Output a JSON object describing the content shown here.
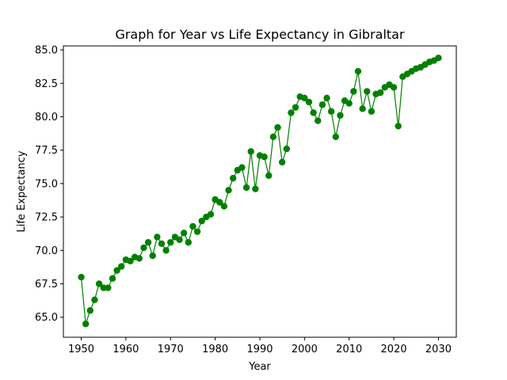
{
  "chart_data": {
    "type": "line",
    "title": "Graph for Year vs Life Expectancy in Gibraltar",
    "xlabel": "Year",
    "ylabel": "Life Expectancy",
    "xlim": [
      1946,
      2034
    ],
    "ylim": [
      63.5,
      85.3
    ],
    "x_ticks": [
      1950,
      1960,
      1970,
      1980,
      1990,
      2000,
      2010,
      2020,
      2030
    ],
    "y_ticks": [
      65.0,
      67.5,
      70.0,
      72.5,
      75.0,
      77.5,
      80.0,
      82.5,
      85.0
    ],
    "x_tick_labels": [
      "1950",
      "1960",
      "1970",
      "1980",
      "1990",
      "2000",
      "2010",
      "2020",
      "2030"
    ],
    "y_tick_labels": [
      "65.0",
      "67.5",
      "70.0",
      "72.5",
      "75.0",
      "77.5",
      "80.0",
      "82.5",
      "85.0"
    ],
    "grid": false,
    "line_color": "#008000",
    "marker": "circle",
    "series": [
      {
        "x": [
          1950,
          1951,
          1952,
          1953,
          1954,
          1955,
          1956,
          1957,
          1958,
          1959,
          1960,
          1961,
          1962,
          1963,
          1964,
          1965,
          1966,
          1967,
          1968,
          1969,
          1970,
          1971,
          1972,
          1973,
          1974,
          1975,
          1976,
          1977,
          1978,
          1979,
          1980,
          1981,
          1982,
          1983,
          1984,
          1985,
          1986,
          1987,
          1988,
          1989,
          1990,
          1991,
          1992,
          1993,
          1994,
          1995,
          1996,
          1997,
          1998,
          1999,
          2000,
          2001,
          2002,
          2003,
          2004,
          2005,
          2006,
          2007,
          2008,
          2009,
          2010,
          2011,
          2012,
          2013,
          2014,
          2015,
          2016,
          2017,
          2018,
          2019,
          2020,
          2021,
          2022,
          2023,
          2024,
          2025,
          2026,
          2027,
          2028,
          2029,
          2030
        ],
        "y": [
          68.0,
          64.5,
          65.5,
          66.3,
          67.5,
          67.2,
          67.2,
          67.9,
          68.5,
          68.8,
          69.3,
          69.2,
          69.5,
          69.4,
          70.2,
          70.6,
          69.6,
          71.0,
          70.5,
          70.0,
          70.6,
          71.0,
          70.8,
          71.3,
          70.6,
          71.8,
          71.4,
          72.2,
          72.5,
          72.7,
          73.8,
          73.6,
          73.3,
          74.5,
          75.4,
          76.0,
          76.2,
          74.7,
          77.4,
          74.6,
          77.1,
          77.0,
          75.6,
          78.5,
          79.2,
          76.6,
          77.6,
          80.3,
          80.7,
          81.5,
          81.4,
          81.1,
          80.3,
          79.7,
          80.9,
          81.4,
          80.4,
          78.5,
          80.1,
          81.2,
          81.0,
          81.9,
          83.4,
          80.6,
          81.9,
          80.4,
          81.7,
          81.8,
          82.2,
          82.4,
          82.2,
          79.3,
          83.0,
          83.2,
          83.4,
          83.6,
          83.7,
          83.9,
          84.1,
          84.2,
          84.4
        ]
      }
    ]
  }
}
